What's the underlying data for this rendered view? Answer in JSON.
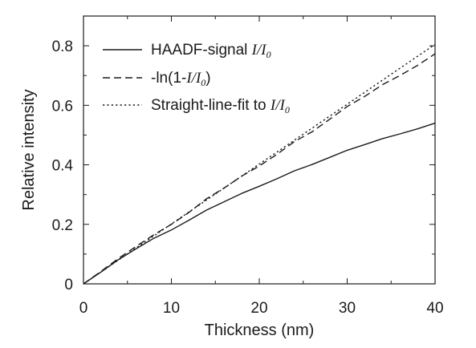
{
  "chart_data": {
    "type": "line",
    "xlabel": "Thickness (nm)",
    "ylabel": "Relative intensity",
    "xlim": [
      0,
      40
    ],
    "ylim": [
      0,
      0.9
    ],
    "x_ticks": [
      0,
      10,
      20,
      30,
      40
    ],
    "x_tick_labels": [
      "0",
      "10",
      "20",
      "30",
      "40"
    ],
    "y_ticks": [
      0,
      0.2,
      0.4,
      0.6,
      0.8
    ],
    "y_tick_labels": [
      "0",
      "0.2",
      "0.4",
      "0.6",
      "0.8"
    ],
    "grid": false,
    "legend_position": "top-left",
    "series": [
      {
        "name": "HAADF-signal I/I0",
        "style": "solid",
        "x": [
          0,
          2,
          4,
          6,
          8,
          10,
          12,
          14,
          16,
          18,
          20,
          22,
          24,
          26,
          28,
          30,
          32,
          34,
          36,
          38,
          40
        ],
        "y": [
          0,
          0.04,
          0.082,
          0.118,
          0.153,
          0.181,
          0.214,
          0.248,
          0.276,
          0.304,
          0.328,
          0.353,
          0.38,
          0.401,
          0.425,
          0.449,
          0.468,
          0.488,
          0.504,
          0.521,
          0.54
        ]
      },
      {
        "name": "-ln(1-I/I0)",
        "style": "dashed",
        "x": [
          0,
          2,
          4,
          6,
          8,
          10,
          12,
          14,
          16,
          18,
          20,
          22,
          24,
          26,
          28,
          30,
          32,
          34,
          36,
          38,
          40
        ],
        "y": [
          0,
          0.042,
          0.086,
          0.126,
          0.165,
          0.2,
          0.24,
          0.286,
          0.322,
          0.362,
          0.396,
          0.435,
          0.478,
          0.511,
          0.553,
          0.596,
          0.63,
          0.669,
          0.7,
          0.734,
          0.773
        ]
      },
      {
        "name": "Straight-line-fit to I/I0",
        "style": "dotted",
        "x": [
          0,
          40
        ],
        "y": [
          0,
          0.805
        ]
      }
    ]
  },
  "legend": {
    "entries": [
      {
        "text": "HAADF-signal ",
        "var": "I/I",
        "sub": "0",
        "tail": ""
      },
      {
        "text": "-ln(1-",
        "var": "I/I",
        "sub": "0",
        "tail": ")"
      },
      {
        "text": "Straight-line-fit to ",
        "var": "I/I",
        "sub": "0",
        "tail": ""
      }
    ]
  }
}
